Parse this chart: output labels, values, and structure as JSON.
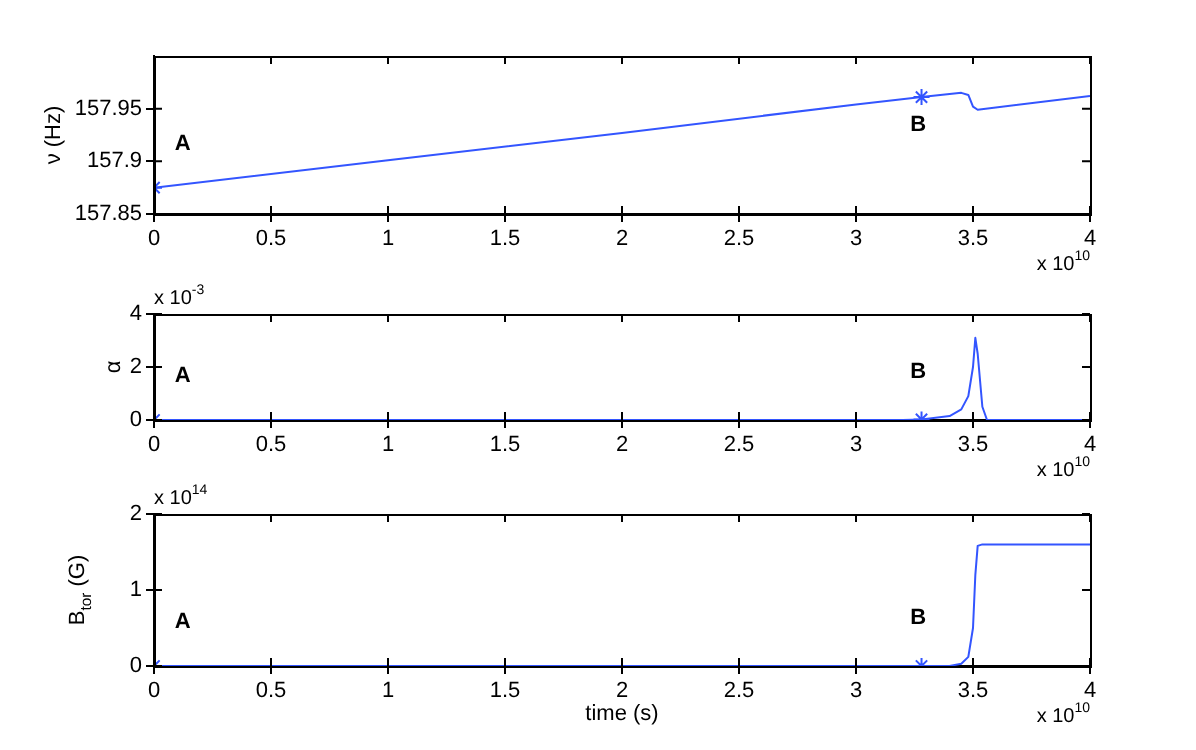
{
  "chart_data": [
    {
      "type": "line",
      "ylabel": "ν (Hz)",
      "xlim": [
        0,
        4
      ],
      "xticks": [
        0,
        0.5,
        1,
        1.5,
        2,
        2.5,
        3,
        3.5,
        4
      ],
      "ylim": [
        157.85,
        158.0
      ],
      "yticks": [
        157.85,
        157.9,
        157.95
      ],
      "grid": false,
      "legend": false,
      "series": [
        {
          "color": "#3355ff",
          "marker": "none",
          "x": [
            0,
            1,
            2,
            3,
            3.28,
            3.45,
            3.48,
            3.5,
            3.52,
            4
          ],
          "values": [
            157.875,
            157.901,
            157.927,
            157.954,
            157.961,
            157.965,
            157.963,
            157.952,
            157.949,
            157.962
          ]
        },
        {
          "type": "scatter",
          "color": "#3355ff",
          "marker": "cross",
          "x": [
            0,
            3.28
          ],
          "values": [
            157.875,
            157.961
          ]
        }
      ],
      "annotations": [
        "A",
        "B",
        "x 10$^{10}$"
      ]
    },
    {
      "type": "line",
      "ylabel": "α",
      "xlim": [
        0,
        4
      ],
      "xticks": [
        0,
        0.5,
        1,
        1.5,
        2,
        2.5,
        3,
        3.5,
        4
      ],
      "ylim": [
        0,
        4
      ],
      "yticks": [
        0,
        2,
        4
      ],
      "grid": false,
      "legend": false,
      "series": [
        {
          "color": "#3355ff",
          "marker": "none",
          "x": [
            0,
            3.2,
            3.28,
            3.4,
            3.45,
            3.48,
            3.5,
            3.51,
            3.52,
            3.54,
            3.56,
            4
          ],
          "values": [
            0,
            0,
            0.02,
            0.15,
            0.4,
            0.9,
            2.0,
            3.1,
            2.5,
            0.5,
            0,
            0
          ]
        },
        {
          "type": "scatter",
          "color": "#3355ff",
          "marker": "cross",
          "x": [
            0,
            3.28
          ],
          "values": [
            0,
            0.02
          ]
        }
      ],
      "annotations": [
        "A",
        "B",
        "x 10$^{-3}$",
        "x 10$^{10}$"
      ]
    },
    {
      "type": "line",
      "xlabel": "time (s)",
      "ylabel": "B$_{tor}$ (G)",
      "xlim": [
        0,
        4
      ],
      "xticks": [
        0,
        0.5,
        1,
        1.5,
        2,
        2.5,
        3,
        3.5,
        4
      ],
      "ylim": [
        0,
        2
      ],
      "yticks": [
        0,
        1,
        2
      ],
      "grid": false,
      "legend": false,
      "series": [
        {
          "color": "#3355ff",
          "marker": "none",
          "x": [
            0,
            3.4,
            3.45,
            3.48,
            3.5,
            3.51,
            3.52,
            3.54,
            4
          ],
          "values": [
            0,
            0,
            0.03,
            0.12,
            0.5,
            1.2,
            1.58,
            1.6,
            1.6
          ]
        },
        {
          "type": "scatter",
          "color": "#3355ff",
          "marker": "cross",
          "x": [
            0,
            3.28
          ],
          "values": [
            0,
            0
          ]
        }
      ],
      "annotations": [
        "A",
        "B",
        "x 10$^{14}$",
        "x 10$^{10}$"
      ]
    }
  ]
}
